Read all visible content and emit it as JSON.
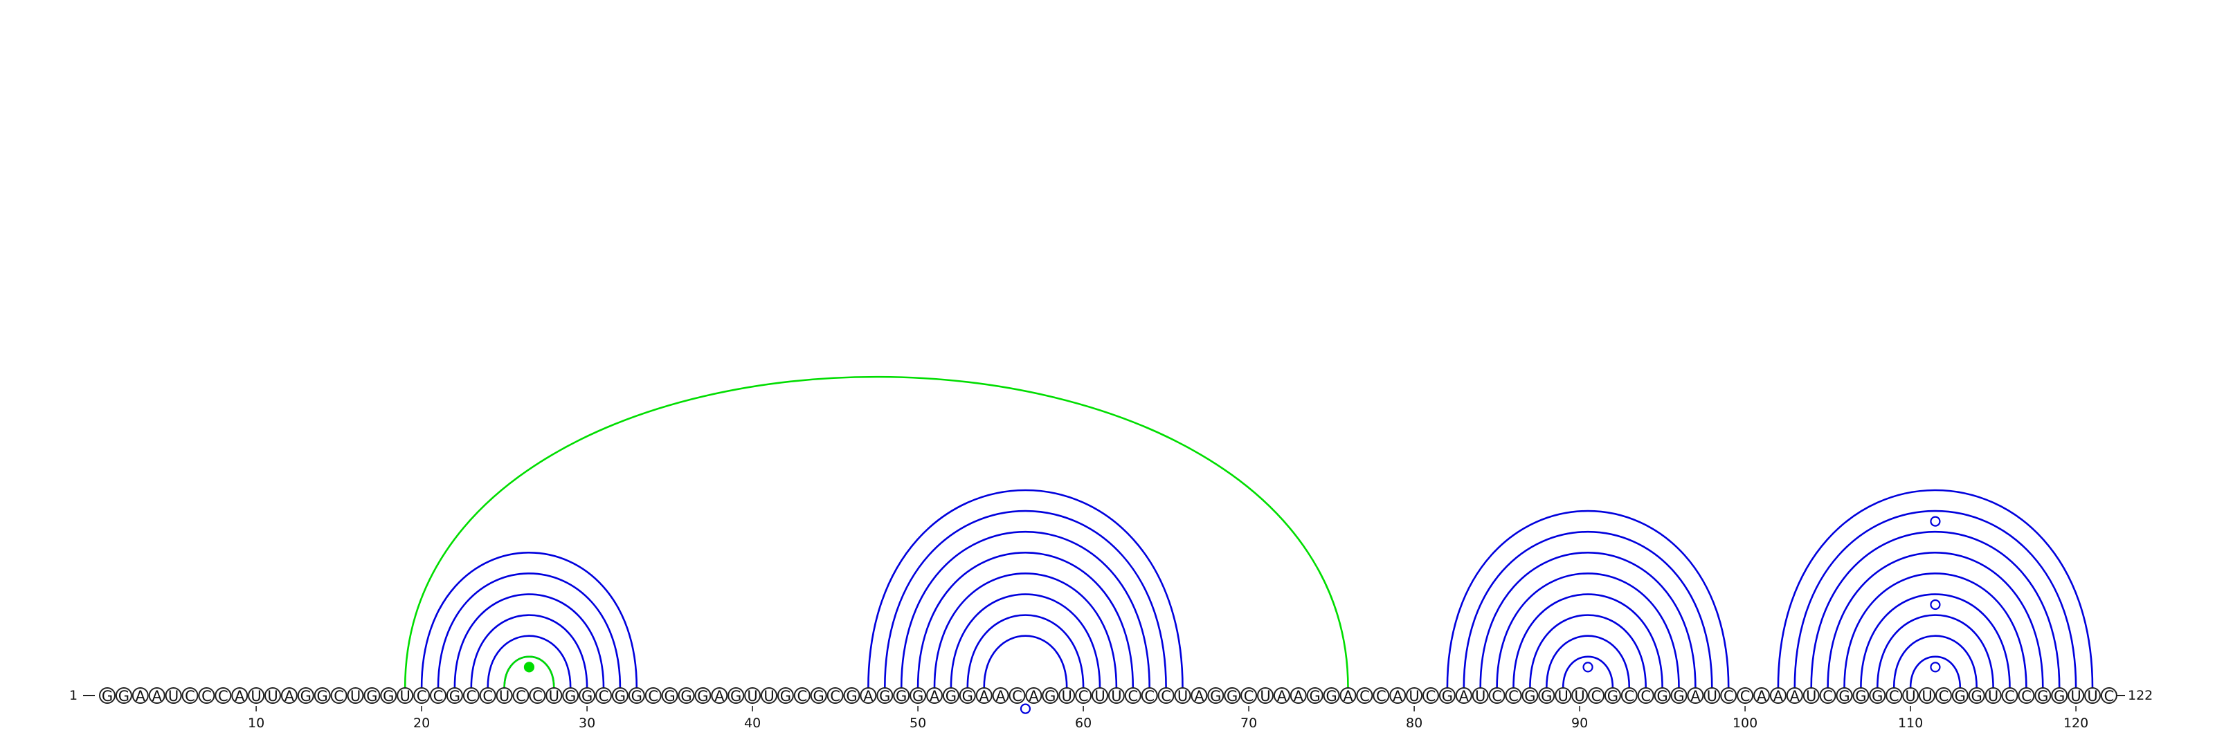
{
  "sequence": "GGAAUCCCAUUAGGCUGGUCCGCCUCCUGGCGGCGGGAGUUGCGCGAGGGAGGAACAGUCUUCCCUAGGCUAAGGACCAUCGAUCCGGUUCGCCGGAUCCAAAUCGGGCUUCGGUCCGGUUC",
  "start_label": "1",
  "end_label": "122",
  "tick_labels": [
    "10",
    "20",
    "30",
    "40",
    "50",
    "60",
    "70",
    "80",
    "90",
    "100",
    "110",
    "120"
  ],
  "colors": {
    "stem": "#0000dd",
    "pseudoknot": "#00dd00",
    "text": "#111111"
  },
  "pair_groups": [
    {
      "color": "stem",
      "pairs": [
        [
          20,
          33
        ],
        [
          21,
          32
        ],
        [
          22,
          31
        ],
        [
          23,
          30
        ],
        [
          24,
          29
        ],
        [
          25,
          28
        ]
      ]
    },
    {
      "color": "pseudoknot",
      "pairs": [
        [
          25,
          28
        ],
        [
          19,
          76
        ]
      ]
    },
    {
      "color": "stem",
      "pairs": [
        [
          47,
          66
        ],
        [
          48,
          65
        ],
        [
          49,
          64
        ],
        [
          50,
          63
        ],
        [
          51,
          62
        ],
        [
          52,
          61
        ],
        [
          53,
          60
        ],
        [
          54,
          59
        ]
      ]
    },
    {
      "color": "stem",
      "pairs": [
        [
          82,
          99
        ],
        [
          83,
          98
        ],
        [
          84,
          97
        ],
        [
          85,
          96
        ],
        [
          86,
          95
        ],
        [
          87,
          94
        ],
        [
          88,
          93
        ],
        [
          89,
          92
        ]
      ]
    },
    {
      "color": "stem",
      "pairs": [
        [
          102,
          121
        ],
        [
          103,
          120
        ],
        [
          104,
          119
        ],
        [
          105,
          118
        ],
        [
          106,
          117
        ],
        [
          107,
          116
        ],
        [
          108,
          115
        ],
        [
          109,
          114
        ],
        [
          110,
          113
        ]
      ]
    }
  ],
  "markers": [
    {
      "pos": 26.5,
      "height_over": 25.5,
      "fill": "pseudoknot"
    },
    {
      "pos": 56.5,
      "height_over": 57.5,
      "fill": "none"
    },
    {
      "pos": 90.5,
      "height_over": 89.5,
      "fill": "none"
    },
    {
      "pos": 111.5,
      "height_over": 110.5,
      "fill": "none"
    },
    {
      "pos": 111.5,
      "height_over": 107.5,
      "fill": "none"
    },
    {
      "pos": 111.5,
      "height_over": 103.5,
      "fill": "none"
    }
  ]
}
